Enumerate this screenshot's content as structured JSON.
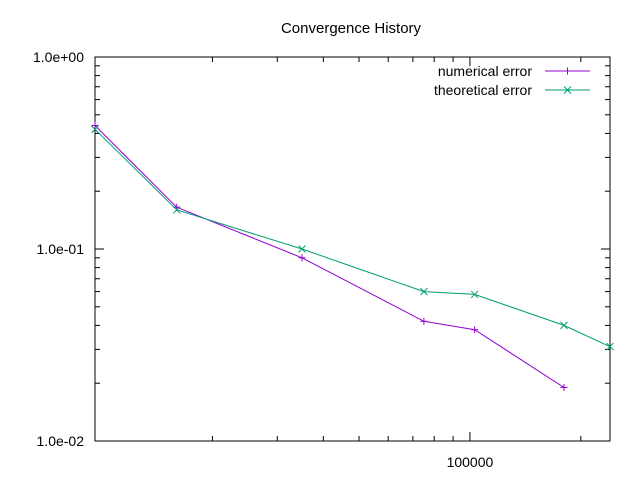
{
  "chart_data": {
    "type": "line",
    "title": "Convergence History",
    "xlabel": "",
    "ylabel": "",
    "xscale": "log",
    "yscale": "log",
    "xlim": [
      9600,
      240000
    ],
    "ylim": [
      0.01,
      1.0
    ],
    "x_tick_labels": [
      {
        "value": 100000,
        "label": "100000"
      }
    ],
    "y_tick_labels": [
      {
        "value": 1.0,
        "label": "1.0e+00"
      },
      {
        "value": 0.1,
        "label": "1.0e-01"
      },
      {
        "value": 0.01,
        "label": "1.0e-02"
      }
    ],
    "grid": false,
    "legend_position": "top-right",
    "series": [
      {
        "name": "numerical error",
        "color": "#9400d3",
        "marker": "plus",
        "points": [
          {
            "x": 9600,
            "y": 0.44
          },
          {
            "x": 16000,
            "y": 0.165
          },
          {
            "x": 35000,
            "y": 0.09
          },
          {
            "x": 75000,
            "y": 0.042
          },
          {
            "x": 103000,
            "y": 0.038
          },
          {
            "x": 180000,
            "y": 0.019
          }
        ]
      },
      {
        "name": "theoretical error",
        "color": "#009e73",
        "marker": "cross",
        "points": [
          {
            "x": 9600,
            "y": 0.42
          },
          {
            "x": 16000,
            "y": 0.16
          },
          {
            "x": 35000,
            "y": 0.1
          },
          {
            "x": 75000,
            "y": 0.06
          },
          {
            "x": 103000,
            "y": 0.058
          },
          {
            "x": 180000,
            "y": 0.04
          },
          {
            "x": 240000,
            "y": 0.031
          }
        ]
      }
    ]
  }
}
